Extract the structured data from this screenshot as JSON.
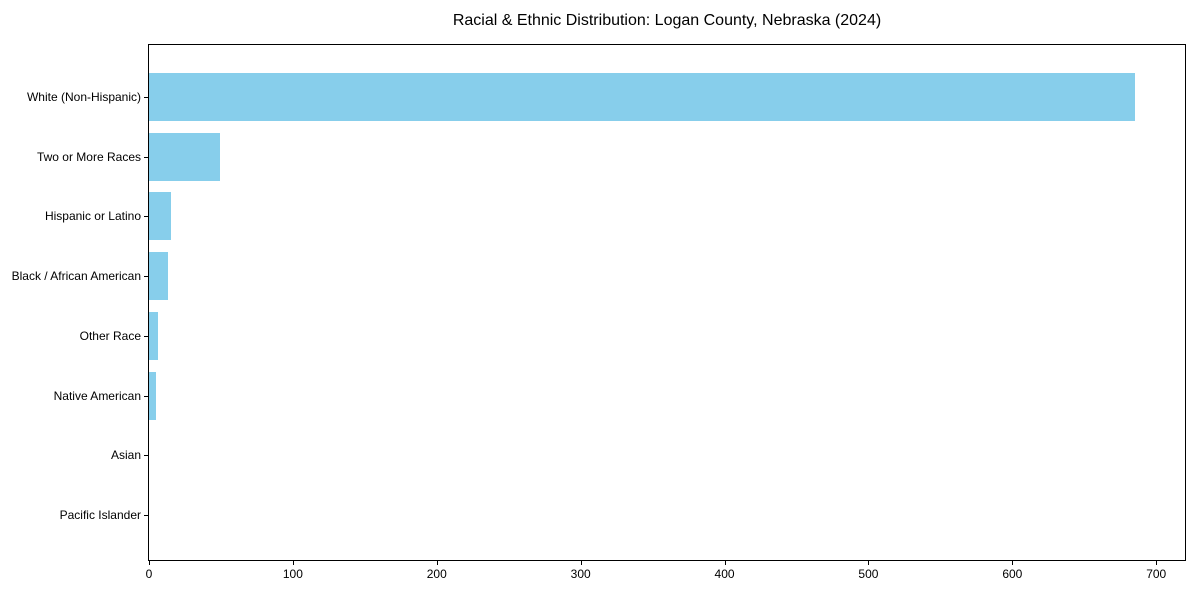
{
  "figure": {
    "background": "#ffffff"
  },
  "chart_data": {
    "type": "bar",
    "orientation": "horizontal",
    "title": "Racial & Ethnic Distribution: Logan County, Nebraska (2024)",
    "categories": [
      "White (Non-Hispanic)",
      "Two or More Races",
      "Hispanic or Latino",
      "Black / African American",
      "Other Race",
      "Native American",
      "Asian",
      "Pacific Islander"
    ],
    "values": [
      685,
      49,
      15,
      13,
      6,
      5,
      0,
      0
    ],
    "xlabel": "",
    "ylabel": "",
    "xticks": [
      0,
      100,
      200,
      300,
      400,
      500,
      600,
      700
    ],
    "xlim": [
      0,
      720
    ],
    "bar_color": "#87CEEB",
    "axis_color": "#000000",
    "text_color": "#000000",
    "grid": false,
    "legend": "none"
  }
}
